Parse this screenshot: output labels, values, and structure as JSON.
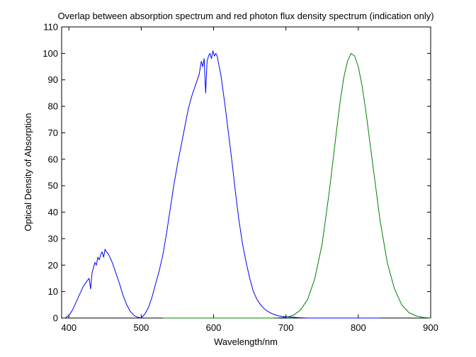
{
  "chart_data": {
    "type": "line",
    "title": "Overlap between absorption spectrum and red photon flux density spectrum (indication only)",
    "xlabel": "Wavelength/nm",
    "ylabel": "Optical Density of Absorption",
    "xlim": [
      390,
      900
    ],
    "ylim": [
      0,
      110
    ],
    "xticks": [
      400,
      500,
      600,
      700,
      800,
      900
    ],
    "yticks": [
      0,
      10,
      20,
      30,
      40,
      50,
      60,
      70,
      80,
      90,
      100,
      110
    ],
    "grid": false,
    "legend": "none",
    "series": [
      {
        "color": "#0000ff",
        "x": [
          395,
          400,
          405,
          410,
          415,
          420,
          425,
          428,
          430,
          432,
          434,
          436,
          438,
          440,
          442,
          444,
          446,
          448,
          450,
          452,
          455,
          460,
          465,
          470,
          475,
          480,
          485,
          490,
          495,
          500,
          505,
          510,
          515,
          520,
          525,
          530,
          535,
          540,
          545,
          550,
          555,
          560,
          565,
          570,
          575,
          580,
          583,
          585,
          587,
          589,
          591,
          593,
          595,
          597,
          599,
          601,
          603,
          605,
          607,
          610,
          615,
          620,
          625,
          630,
          635,
          640,
          645,
          650,
          655,
          660,
          665,
          670,
          675,
          680,
          685,
          690,
          695,
          700,
          705,
          710,
          715,
          720,
          730,
          750,
          780,
          800,
          830
        ],
        "y": [
          0,
          1,
          3,
          6,
          9,
          12,
          14,
          15,
          11,
          17,
          19,
          21,
          20,
          23,
          22,
          24,
          25,
          23,
          26,
          25,
          24,
          21,
          17,
          13,
          8.5,
          5,
          2.5,
          1,
          0.3,
          0,
          1.5,
          4,
          8,
          13,
          18,
          24,
          32,
          41,
          50,
          58,
          65,
          72,
          79,
          84,
          88,
          92,
          97,
          95,
          98,
          85,
          97,
          99,
          100,
          98,
          101,
          99,
          100,
          99,
          96,
          92,
          82,
          71,
          60,
          48,
          37,
          28,
          21,
          15,
          10,
          7,
          5,
          3.5,
          2.5,
          1.8,
          1.2,
          0.8,
          0.6,
          0.5,
          0.4,
          0.3,
          0.2,
          0.1,
          0,
          0,
          0,
          0,
          0
        ]
      },
      {
        "color": "#008000",
        "x": [
          530,
          680,
          690,
          700,
          710,
          720,
          730,
          740,
          750,
          760,
          770,
          775,
          780,
          785,
          790,
          795,
          800,
          805,
          810,
          820,
          830,
          840,
          850,
          860,
          870,
          880,
          890,
          900
        ],
        "y": [
          0,
          0,
          0.1,
          0.3,
          1,
          3,
          7,
          15,
          28,
          48,
          71,
          82,
          91,
          97,
          100,
          99,
          95,
          88,
          79,
          58,
          37,
          21,
          11,
          5,
          2,
          0.8,
          0.2,
          0
        ]
      }
    ]
  }
}
